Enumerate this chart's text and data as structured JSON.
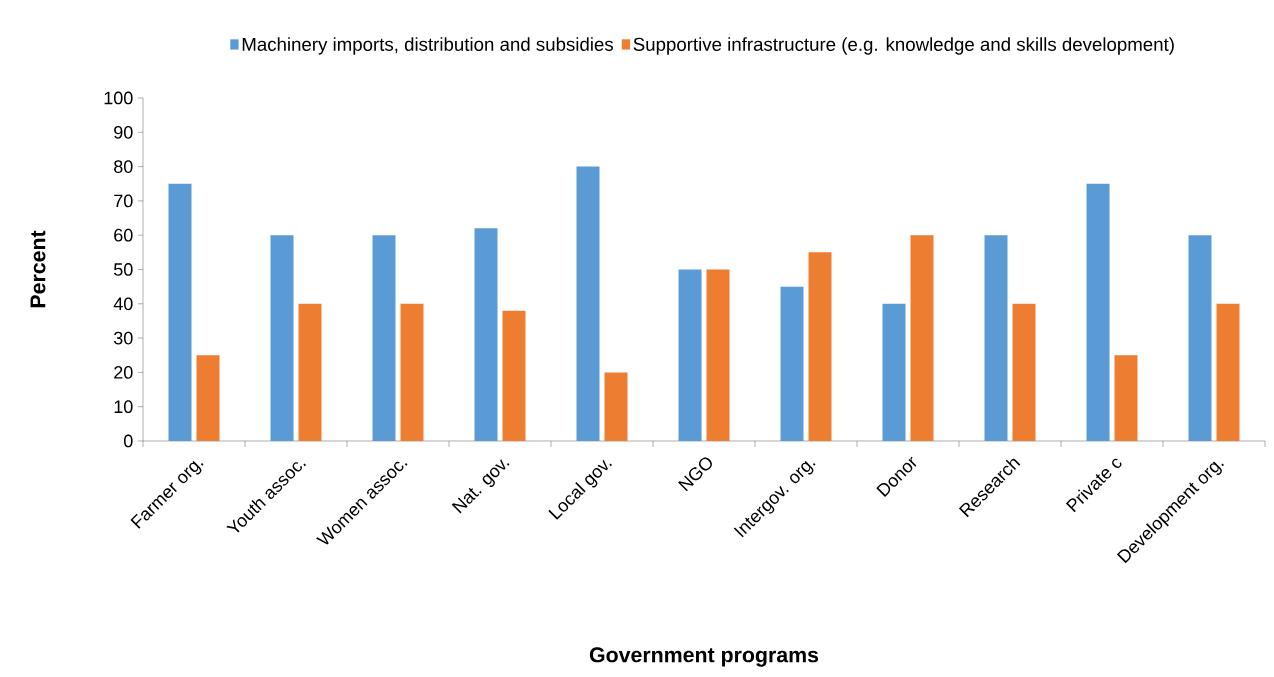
{
  "chart_data": {
    "type": "bar",
    "xlabel": "Government programs",
    "ylabel": "Percent",
    "categories": [
      "Farmer org.",
      "Youth assoc.",
      "Women assoc.",
      "Nat. gov.",
      "Local gov.",
      "NGO",
      "Intergov. org.",
      "Donor",
      "Research",
      "Private c",
      "Development org."
    ],
    "series": [
      {
        "name": "Machinery imports, distribution and subsidies",
        "color": "#5b9bd5",
        "values": [
          75,
          60,
          60,
          62,
          80,
          50,
          45,
          40,
          60,
          75,
          60
        ]
      },
      {
        "name": "Supportive infrastructure (e.g. knowledge and skills development)",
        "color": "#ed7d31",
        "values": [
          25,
          40,
          40,
          38,
          20,
          50,
          55,
          60,
          40,
          25,
          40
        ]
      }
    ],
    "ylim": [
      0,
      100
    ],
    "yticks": [
      0,
      10,
      20,
      30,
      40,
      50,
      60,
      70,
      80,
      90,
      100
    ],
    "legend": "top",
    "grid": false
  }
}
